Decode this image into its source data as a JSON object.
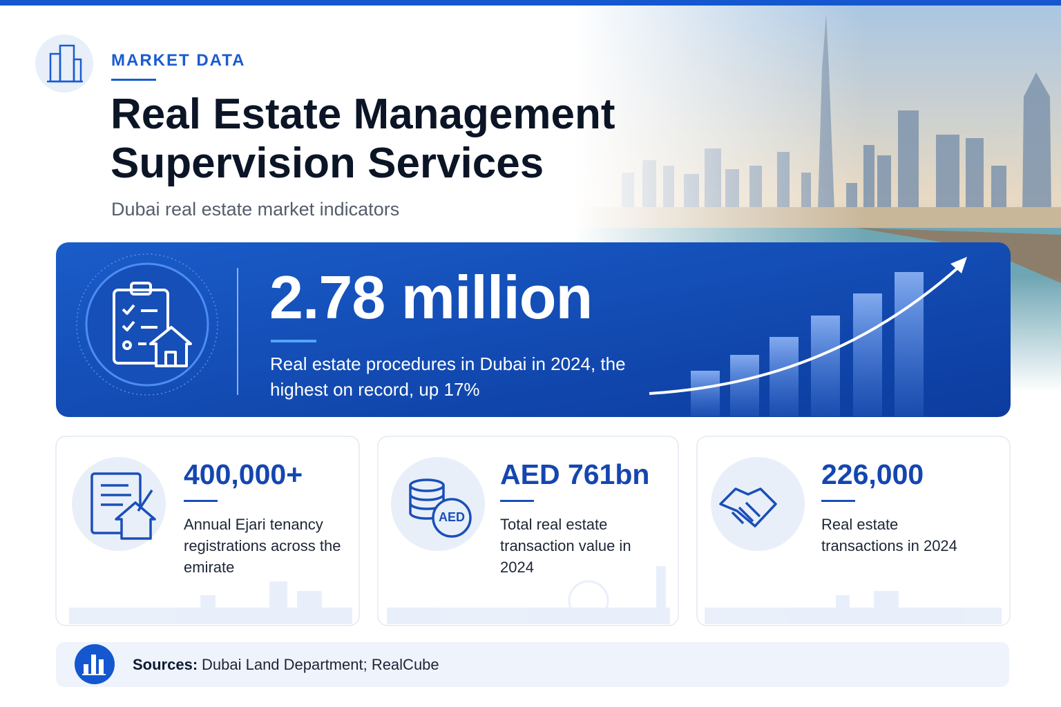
{
  "header": {
    "eyebrow": "MARKET DATA",
    "title": "Real Estate Management Supervision Services",
    "subtitle": "Dubai real estate market indicators"
  },
  "hero": {
    "value": "2.78 million",
    "description": "Real estate procedures in Dubai in 2024, the highest on record, up 17%"
  },
  "cards": [
    {
      "value": "400,000+",
      "description": "Annual Ejari tenancy registrations across the emirate"
    },
    {
      "value": "AED 761bn",
      "description": "Total real estate transaction value in 2024",
      "icon_label": "AED"
    },
    {
      "value": "226,000",
      "description": "Real estate transactions in 2024"
    }
  ],
  "sources": {
    "label": "Sources:",
    "text": "Dubai Land Department; RealCube"
  }
}
